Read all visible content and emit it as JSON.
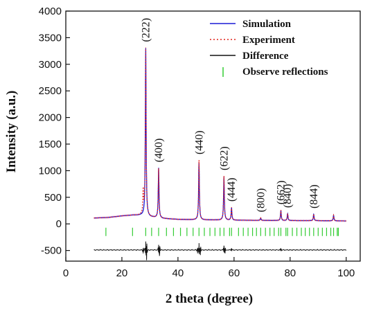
{
  "chart_data": {
    "type": "line",
    "title": "",
    "xlabel": "2 theta (degree)",
    "ylabel": "Intensity (a.u.)",
    "xlim": [
      0,
      105
    ],
    "ylim": [
      -700,
      4000
    ],
    "xticks": [
      0,
      20,
      40,
      60,
      80,
      100
    ],
    "yticks": [
      -500,
      0,
      500,
      1000,
      1500,
      2000,
      2500,
      3000,
      3500,
      4000
    ],
    "grid": false,
    "legend_position": "top-right",
    "colors": {
      "simulation": "#1a1ad6",
      "experiment": "#e0201a",
      "difference": "#111111",
      "reflections": "#33cc33",
      "experiment_fill": "#f2b6d8"
    },
    "series": [
      {
        "name": "Simulation",
        "style": "solid",
        "background": [
          [
            10,
            110
          ],
          [
            15,
            120
          ],
          [
            20,
            150
          ],
          [
            24,
            165
          ],
          [
            27,
            160
          ],
          [
            30,
            130
          ],
          [
            35,
            100
          ],
          [
            40,
            85
          ],
          [
            50,
            75
          ],
          [
            60,
            70
          ],
          [
            70,
            65
          ],
          [
            80,
            62
          ],
          [
            90,
            60
          ],
          [
            100,
            55
          ]
        ],
        "peaks": [
          [
            28.5,
            3300
          ],
          [
            33.1,
            1050
          ],
          [
            47.5,
            1150
          ],
          [
            56.4,
            880
          ],
          [
            59.1,
            300
          ],
          [
            69.5,
            110
          ],
          [
            76.7,
            250
          ],
          [
            79.1,
            190
          ],
          [
            88.4,
            180
          ],
          [
            95.5,
            160
          ]
        ]
      },
      {
        "name": "Experiment",
        "style": "dotted",
        "background": [
          [
            10,
            110
          ],
          [
            15,
            120
          ],
          [
            20,
            150
          ],
          [
            24,
            165
          ],
          [
            27,
            160
          ],
          [
            30,
            130
          ],
          [
            35,
            100
          ],
          [
            40,
            85
          ],
          [
            50,
            75
          ],
          [
            60,
            70
          ],
          [
            70,
            65
          ],
          [
            80,
            62
          ],
          [
            90,
            60
          ],
          [
            100,
            55
          ]
        ],
        "peaks": [
          [
            27.6,
            600
          ],
          [
            28.5,
            3300
          ],
          [
            33.1,
            1040
          ],
          [
            47.5,
            1200
          ],
          [
            56.4,
            900
          ],
          [
            59.1,
            310
          ],
          [
            69.5,
            115
          ],
          [
            76.7,
            260
          ],
          [
            79.1,
            195
          ],
          [
            88.4,
            185
          ],
          [
            95.5,
            165
          ]
        ]
      },
      {
        "name": "Difference",
        "style": "solid",
        "baseline": -490,
        "spikes": [
          [
            27.6,
            -40
          ],
          [
            28.5,
            100
          ],
          [
            28.8,
            -120
          ],
          [
            33.1,
            60
          ],
          [
            33.4,
            -70
          ],
          [
            47.0,
            -40
          ],
          [
            47.5,
            80
          ],
          [
            48.0,
            -60
          ],
          [
            56.4,
            50
          ],
          [
            56.8,
            -40
          ],
          [
            59.1,
            20
          ],
          [
            76.7,
            20
          ]
        ]
      },
      {
        "name": "Observe reflections",
        "style": "tick",
        "y": -150,
        "x": [
          14.3,
          23.8,
          28.5,
          30.6,
          33.1,
          35.9,
          38.4,
          40.9,
          43.2,
          45.4,
          47.5,
          49.4,
          51.4,
          53.2,
          55.0,
          56.4,
          58.4,
          59.1,
          61.6,
          63.3,
          65.0,
          66.6,
          68.0,
          69.5,
          71.2,
          72.8,
          74.3,
          75.9,
          76.7,
          78.5,
          79.1,
          80.8,
          82.4,
          84.0,
          85.4,
          86.9,
          88.4,
          90.0,
          91.5,
          93.0,
          94.5,
          95.5,
          96.8,
          97.2
        ]
      }
    ],
    "annotations": [
      {
        "text": "(222)",
        "x": 28.5
      },
      {
        "text": "(400)",
        "x": 33.1
      },
      {
        "text": "(440)",
        "x": 47.5
      },
      {
        "text": "(622)",
        "x": 56.4
      },
      {
        "text": "(444)",
        "x": 59.1
      },
      {
        "text": "(800)",
        "x": 69.5
      },
      {
        "text": "(662)",
        "x": 76.7
      },
      {
        "text": "(840)",
        "x": 79.1
      },
      {
        "text": "(844)",
        "x": 88.4
      }
    ]
  }
}
